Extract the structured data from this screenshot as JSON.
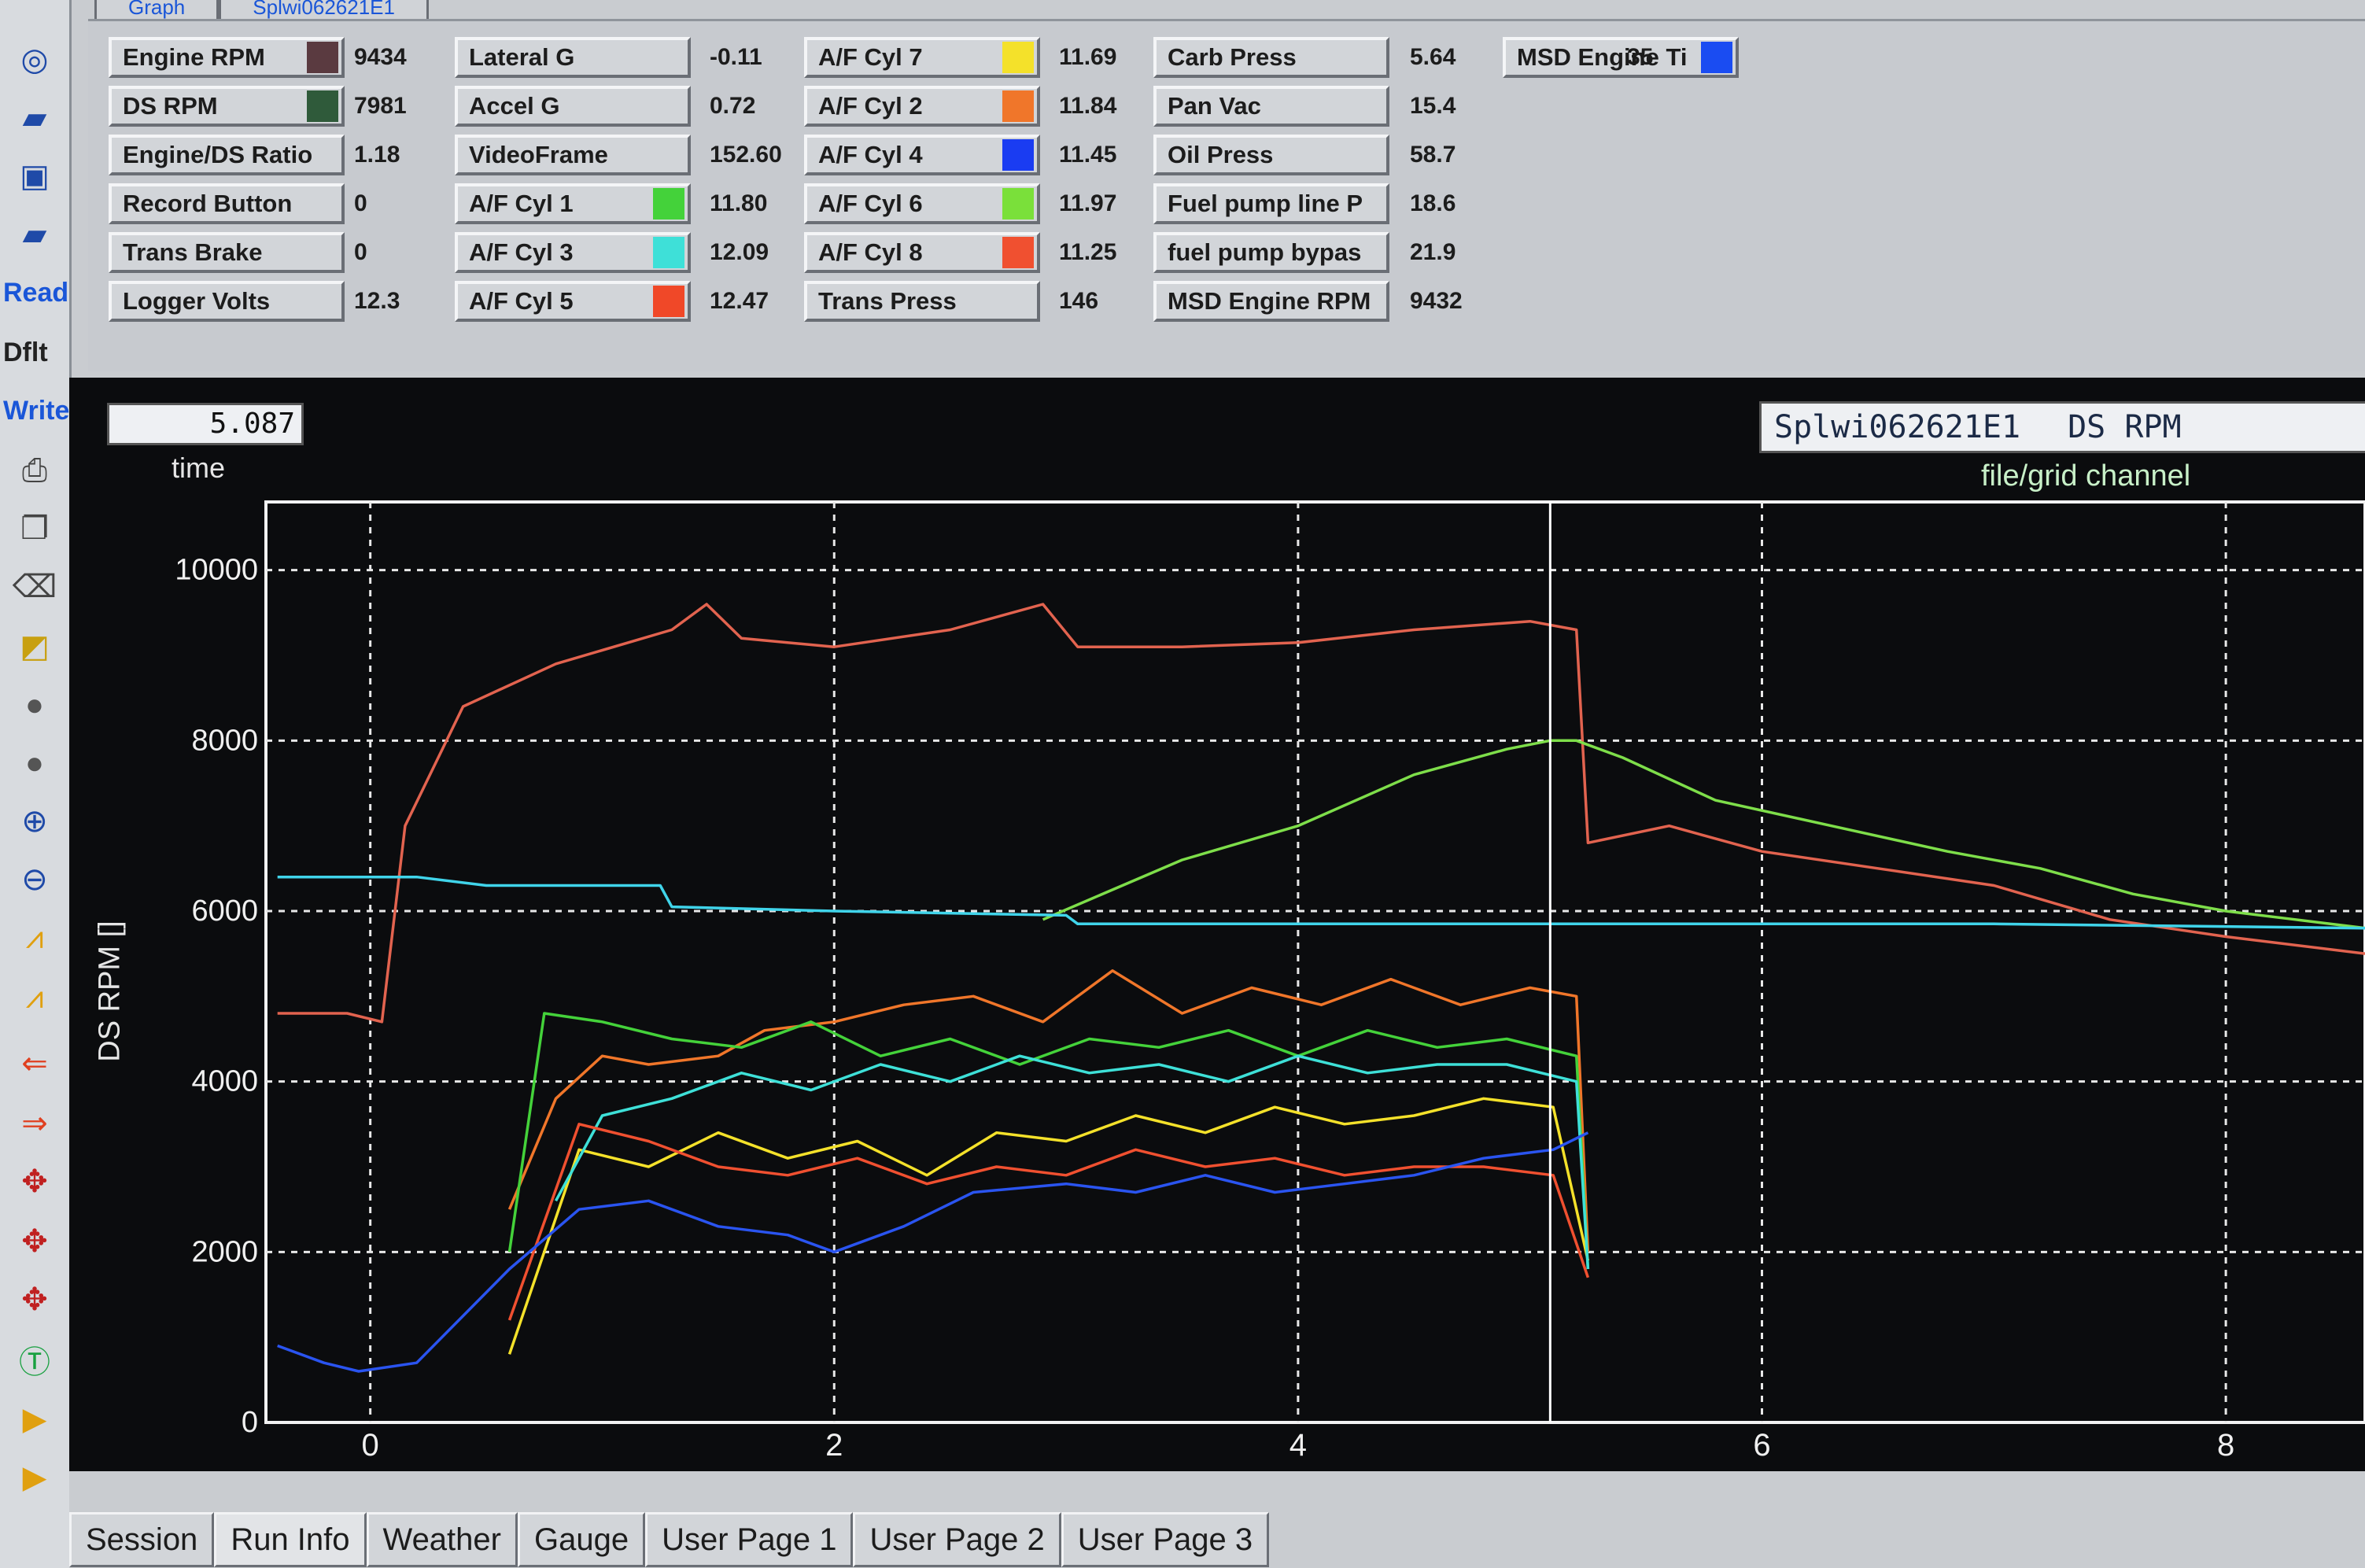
{
  "top_tabs": [
    {
      "label": "Graph"
    },
    {
      "label": "Splwi062621E1"
    }
  ],
  "channels": [
    {
      "label": "Engine RPM",
      "value": "9434",
      "swatch": "#5a3a40"
    },
    {
      "label": "DS RPM",
      "value": "7981",
      "swatch": "#2f5a3a"
    },
    {
      "label": "Engine/DS Ratio",
      "value": "1.18",
      "swatch": null
    },
    {
      "label": "Record Button",
      "value": "0",
      "swatch": null
    },
    {
      "label": "Trans Brake",
      "value": "0",
      "swatch": null
    },
    {
      "label": "Logger Volts",
      "value": "12.3",
      "swatch": null
    },
    {
      "label": "Lateral G",
      "value": "-0.11",
      "swatch": null
    },
    {
      "label": "Accel G",
      "value": "0.72",
      "swatch": null
    },
    {
      "label": "VideoFrame",
      "value": "152.60",
      "swatch": null
    },
    {
      "label": "A/F Cyl 1",
      "value": "11.80",
      "swatch": "#44d23a"
    },
    {
      "label": "A/F Cyl 3",
      "value": "12.09",
      "swatch": "#3ee0d8"
    },
    {
      "label": "A/F Cyl 5",
      "value": "12.47",
      "swatch": "#f04828"
    },
    {
      "label": "A/F Cyl 7",
      "value": "11.69",
      "swatch": "#f4e12a"
    },
    {
      "label": "A/F Cyl 2",
      "value": "11.84",
      "swatch": "#f0762a"
    },
    {
      "label": "A/F Cyl 4",
      "value": "11.45",
      "swatch": "#1a3cf2"
    },
    {
      "label": "A/F Cyl 6",
      "value": "11.97",
      "swatch": "#7ae03a"
    },
    {
      "label": "A/F Cyl 8",
      "value": "11.25",
      "swatch": "#f05030"
    },
    {
      "label": "Trans Press",
      "value": "146",
      "swatch": null
    },
    {
      "label": "Carb Press",
      "value": "5.64",
      "swatch": null
    },
    {
      "label": "Pan Vac",
      "value": "15.4",
      "swatch": null
    },
    {
      "label": "Oil Press",
      "value": "58.7",
      "swatch": null
    },
    {
      "label": "Fuel pump line P",
      "value": "18.6",
      "swatch": null
    },
    {
      "label": "fuel pump bypas",
      "value": "21.9",
      "swatch": null
    },
    {
      "label": "MSD Engine RPM",
      "value": "9432",
      "swatch": null
    },
    {
      "label": "MSD Engine Ti",
      "value": "35",
      "swatch": "#1a4cf2"
    }
  ],
  "toolbar": {
    "read_label": "Read",
    "dflt_label": "Dflt",
    "write_label": "Write",
    "icons": [
      "gauge-icon",
      "open-folder-icon",
      "save-icon",
      "open-folder-icon",
      "printer-icon",
      "copy-icon",
      "eraser-icon",
      "zoom-in-icon",
      "zoom-out-icon",
      "arrow-right-icon",
      "arrow-left-icon",
      "text-icon"
    ]
  },
  "graph": {
    "time_value": "5.087",
    "time_label": "time",
    "file_name": "Splwi062621E1",
    "channel_name": "DS RPM",
    "file_grid_label": "file/grid channel"
  },
  "chart_data": {
    "type": "line",
    "ylabel": "DS RPM []",
    "xlim": [
      -0.45,
      8.6
    ],
    "ylim": [
      0,
      10800
    ],
    "x_ticks": [
      0,
      2,
      4,
      6,
      8
    ],
    "y_ticks": [
      0,
      2000,
      4000,
      6000,
      8000,
      10000
    ],
    "grid": true,
    "cursor_x": 5.087,
    "series": [
      {
        "color": "#e2634f",
        "points": [
          [
            -0.4,
            4800
          ],
          [
            -0.1,
            4800
          ],
          [
            0.05,
            4700
          ],
          [
            0.15,
            7000
          ],
          [
            0.4,
            8400
          ],
          [
            0.8,
            8900
          ],
          [
            1.3,
            9300
          ],
          [
            1.45,
            9600
          ],
          [
            1.6,
            9200
          ],
          [
            2.0,
            9100
          ],
          [
            2.5,
            9300
          ],
          [
            2.9,
            9600
          ],
          [
            3.05,
            9100
          ],
          [
            3.5,
            9100
          ],
          [
            4.0,
            9150
          ],
          [
            4.5,
            9300
          ],
          [
            5.0,
            9400
          ],
          [
            5.2,
            9300
          ],
          [
            5.25,
            6800
          ],
          [
            5.6,
            7000
          ],
          [
            6.0,
            6700
          ],
          [
            6.5,
            6500
          ],
          [
            7.0,
            6300
          ],
          [
            7.5,
            5900
          ],
          [
            8.0,
            5700
          ],
          [
            8.6,
            5500
          ]
        ]
      },
      {
        "color": "#7ede4a",
        "points": [
          [
            2.9,
            5900
          ],
          [
            3.5,
            6600
          ],
          [
            4.0,
            7000
          ],
          [
            4.5,
            7600
          ],
          [
            4.9,
            7900
          ],
          [
            5.087,
            8000
          ],
          [
            5.2,
            8000
          ],
          [
            5.4,
            7800
          ],
          [
            5.8,
            7300
          ],
          [
            6.3,
            7000
          ],
          [
            6.8,
            6700
          ],
          [
            7.2,
            6500
          ],
          [
            7.6,
            6200
          ],
          [
            8.0,
            6000
          ],
          [
            8.3,
            5900
          ],
          [
            8.6,
            5800
          ]
        ]
      },
      {
        "color": "#40d4ea",
        "points": [
          [
            -0.4,
            6400
          ],
          [
            0.2,
            6400
          ],
          [
            0.5,
            6300
          ],
          [
            1.25,
            6300
          ],
          [
            1.3,
            6050
          ],
          [
            2.0,
            6000
          ],
          [
            3.0,
            5950
          ],
          [
            3.05,
            5850
          ],
          [
            4.0,
            5850
          ],
          [
            5.0,
            5850
          ],
          [
            6.0,
            5850
          ],
          [
            7.0,
            5850
          ],
          [
            8.6,
            5800
          ]
        ]
      },
      {
        "color": "#f0762a",
        "points": [
          [
            0.6,
            2500
          ],
          [
            0.8,
            3800
          ],
          [
            1.0,
            4300
          ],
          [
            1.2,
            4200
          ],
          [
            1.5,
            4300
          ],
          [
            1.7,
            4600
          ],
          [
            2.0,
            4700
          ],
          [
            2.3,
            4900
          ],
          [
            2.6,
            5000
          ],
          [
            2.9,
            4700
          ],
          [
            3.2,
            5300
          ],
          [
            3.5,
            4800
          ],
          [
            3.8,
            5100
          ],
          [
            4.1,
            4900
          ],
          [
            4.4,
            5200
          ],
          [
            4.7,
            4900
          ],
          [
            5.0,
            5100
          ],
          [
            5.2,
            5000
          ],
          [
            5.25,
            2000
          ]
        ]
      },
      {
        "color": "#44d23a",
        "points": [
          [
            0.6,
            2000
          ],
          [
            0.75,
            4800
          ],
          [
            1.0,
            4700
          ],
          [
            1.3,
            4500
          ],
          [
            1.6,
            4400
          ],
          [
            1.9,
            4700
          ],
          [
            2.2,
            4300
          ],
          [
            2.5,
            4500
          ],
          [
            2.8,
            4200
          ],
          [
            3.1,
            4500
          ],
          [
            3.4,
            4400
          ],
          [
            3.7,
            4600
          ],
          [
            4.0,
            4300
          ],
          [
            4.3,
            4600
          ],
          [
            4.6,
            4400
          ],
          [
            4.9,
            4500
          ],
          [
            5.2,
            4300
          ],
          [
            5.25,
            1800
          ]
        ]
      },
      {
        "color": "#f4e12a",
        "points": [
          [
            0.6,
            800
          ],
          [
            0.9,
            3200
          ],
          [
            1.2,
            3000
          ],
          [
            1.5,
            3400
          ],
          [
            1.8,
            3100
          ],
          [
            2.1,
            3300
          ],
          [
            2.4,
            2900
          ],
          [
            2.7,
            3400
          ],
          [
            3.0,
            3300
          ],
          [
            3.3,
            3600
          ],
          [
            3.6,
            3400
          ],
          [
            3.9,
            3700
          ],
          [
            4.2,
            3500
          ],
          [
            4.5,
            3600
          ],
          [
            4.8,
            3800
          ],
          [
            5.1,
            3700
          ],
          [
            5.25,
            1900
          ]
        ]
      },
      {
        "color": "#3ee0d8",
        "points": [
          [
            0.8,
            2600
          ],
          [
            1.0,
            3600
          ],
          [
            1.3,
            3800
          ],
          [
            1.6,
            4100
          ],
          [
            1.9,
            3900
          ],
          [
            2.2,
            4200
          ],
          [
            2.5,
            4000
          ],
          [
            2.8,
            4300
          ],
          [
            3.1,
            4100
          ],
          [
            3.4,
            4200
          ],
          [
            3.7,
            4000
          ],
          [
            4.0,
            4300
          ],
          [
            4.3,
            4100
          ],
          [
            4.6,
            4200
          ],
          [
            4.9,
            4200
          ],
          [
            5.2,
            4000
          ],
          [
            5.25,
            1800
          ]
        ]
      },
      {
        "color": "#f05030",
        "points": [
          [
            0.6,
            1200
          ],
          [
            0.9,
            3500
          ],
          [
            1.2,
            3300
          ],
          [
            1.5,
            3000
          ],
          [
            1.8,
            2900
          ],
          [
            2.1,
            3100
          ],
          [
            2.4,
            2800
          ],
          [
            2.7,
            3000
          ],
          [
            3.0,
            2900
          ],
          [
            3.3,
            3200
          ],
          [
            3.6,
            3000
          ],
          [
            3.9,
            3100
          ],
          [
            4.2,
            2900
          ],
          [
            4.5,
            3000
          ],
          [
            4.8,
            3000
          ],
          [
            5.1,
            2900
          ],
          [
            5.25,
            1700
          ]
        ]
      },
      {
        "color": "#2a54f0",
        "points": [
          [
            -0.4,
            900
          ],
          [
            -0.2,
            700
          ],
          [
            -0.05,
            600
          ],
          [
            0.2,
            700
          ],
          [
            0.6,
            1800
          ],
          [
            0.9,
            2500
          ],
          [
            1.2,
            2600
          ],
          [
            1.5,
            2300
          ],
          [
            1.8,
            2200
          ],
          [
            2.0,
            2000
          ],
          [
            2.3,
            2300
          ],
          [
            2.6,
            2700
          ],
          [
            3.0,
            2800
          ],
          [
            3.3,
            2700
          ],
          [
            3.6,
            2900
          ],
          [
            3.9,
            2700
          ],
          [
            4.2,
            2800
          ],
          [
            4.5,
            2900
          ],
          [
            4.8,
            3100
          ],
          [
            5.1,
            3200
          ],
          [
            5.25,
            3400
          ]
        ]
      }
    ]
  },
  "bottom_tabs": [
    {
      "label": "Session"
    },
    {
      "label": "Run Info"
    },
    {
      "label": "Weather"
    },
    {
      "label": "Gauge"
    },
    {
      "label": "User Page 1"
    },
    {
      "label": "User Page 2"
    },
    {
      "label": "User Page 3"
    }
  ]
}
